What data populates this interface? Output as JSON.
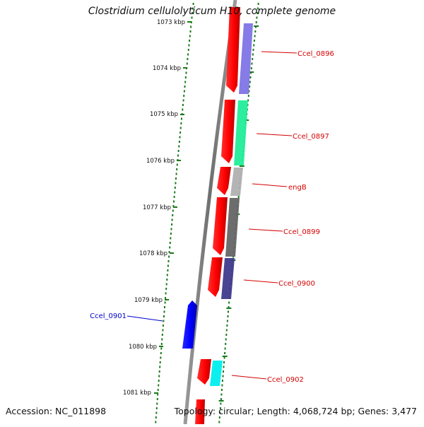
{
  "title": "Clostridium cellulolyticum H10, complete genome",
  "accession": "Accession: NC_011898",
  "topology": "Topology: circular; Length: 4,068,724 bp; Genes: 3,477",
  "kbp_labels": [
    "1073 kbp",
    "1074 kbp",
    "1075 kbp",
    "1076 kbp",
    "1077 kbp",
    "1078 kbp",
    "1079 kbp",
    "1080 kbp",
    "1081 kbp"
  ],
  "genes": [
    {
      "label": "Ccel_0896",
      "color": "#d40000",
      "strand": "forward"
    },
    {
      "label": "Ccel_0897",
      "color": "#d40000",
      "strand": "forward"
    },
    {
      "label": "engB",
      "color": "#d40000",
      "strand": "forward"
    },
    {
      "label": "Ccel_0899",
      "color": "#d40000",
      "strand": "forward"
    },
    {
      "label": "Ccel_0900",
      "color": "#d40000",
      "strand": "forward"
    },
    {
      "label": "Ccel_0901",
      "color": "#0000c8",
      "strand": "reverse"
    },
    {
      "label": "Ccel_0902",
      "color": "#d40000",
      "strand": "forward"
    }
  ],
  "colors": {
    "backbone": "#7a7a7a",
    "tick": "#1a7a1a",
    "forward_gene": "#ff0000",
    "reverse_gene": "#0000ff",
    "feature_colors": [
      "#7f74e6",
      "#22ee99",
      "#b0b0b0",
      "#666666",
      "#403a8c",
      "#00eeee"
    ]
  }
}
